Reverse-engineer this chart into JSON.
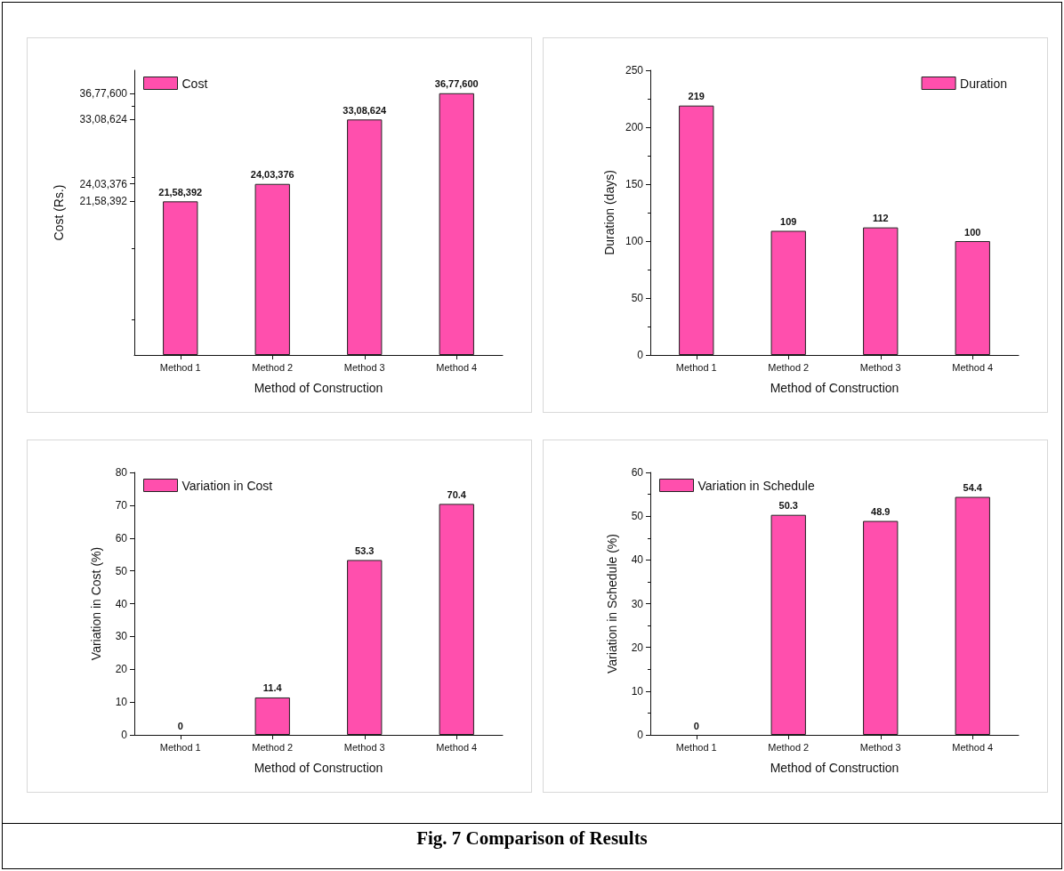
{
  "chart_data": [
    {
      "type": "bar",
      "categories": [
        "Method 1",
        "Method 2",
        "Method 3",
        "Method 4"
      ],
      "xlabel": "Method of Construction",
      "ylabel": "Cost (Rs.)",
      "series": [
        {
          "name": "Cost",
          "color": "#ff4fad",
          "values": [
            2158392,
            2403376,
            3308624,
            3677600
          ]
        }
      ],
      "value_labels": [
        "21,58,392",
        "24,03,376",
        "33,08,624",
        "36,77,600"
      ],
      "ylim": [
        0,
        4000000
      ],
      "yticks": [
        {
          "value": 2158392,
          "label": "21,58,392"
        },
        {
          "value": 2403376,
          "label": "24,03,376"
        },
        {
          "value": 3308624,
          "label": "33,08,624"
        },
        {
          "value": 3677600,
          "label": "36,77,600"
        }
      ],
      "grid": false,
      "legend": "top left"
    },
    {
      "type": "bar",
      "categories": [
        "Method 1",
        "Method 2",
        "Method 3",
        "Method 4"
      ],
      "xlabel": "Method of Construction",
      "ylabel": "Duration (days)",
      "series": [
        {
          "name": "Duration",
          "color": "#ff4fad",
          "values": [
            219,
            109,
            112,
            100
          ]
        }
      ],
      "data_labels": true,
      "ylim": [
        0,
        250
      ],
      "yticks": [
        0,
        50,
        100,
        150,
        200,
        250
      ],
      "grid": false,
      "legend": "top right"
    },
    {
      "type": "bar",
      "categories": [
        "Method 1",
        "Method 2",
        "Method 3",
        "Method 4"
      ],
      "xlabel": "Method of Construction",
      "ylabel": "Variation in Cost (%)",
      "series": [
        {
          "name": "Variation in Cost",
          "color": "#ff4fad",
          "values": [
            0,
            11.4,
            53.3,
            70.4
          ]
        }
      ],
      "data_labels": true,
      "ylim": [
        0,
        80
      ],
      "yticks": [
        0,
        10,
        20,
        30,
        40,
        50,
        60,
        70,
        80
      ],
      "grid": false,
      "legend": "top left"
    },
    {
      "type": "bar",
      "categories": [
        "Method 1",
        "Method 2",
        "Method 3",
        "Method 4"
      ],
      "xlabel": "Method of Construction",
      "ylabel": "Variation in Schedule (%)",
      "series": [
        {
          "name": "Variation in Schedule",
          "color": "#ff4fad",
          "values": [
            0,
            50.3,
            48.9,
            54.4
          ]
        }
      ],
      "data_labels": true,
      "ylim": [
        0,
        60
      ],
      "yticks": [
        0,
        10,
        20,
        30,
        40,
        50,
        60
      ],
      "grid": false,
      "legend": "top left",
      "annotations": [
        "Fig. 7 Comparison of Results"
      ]
    }
  ]
}
